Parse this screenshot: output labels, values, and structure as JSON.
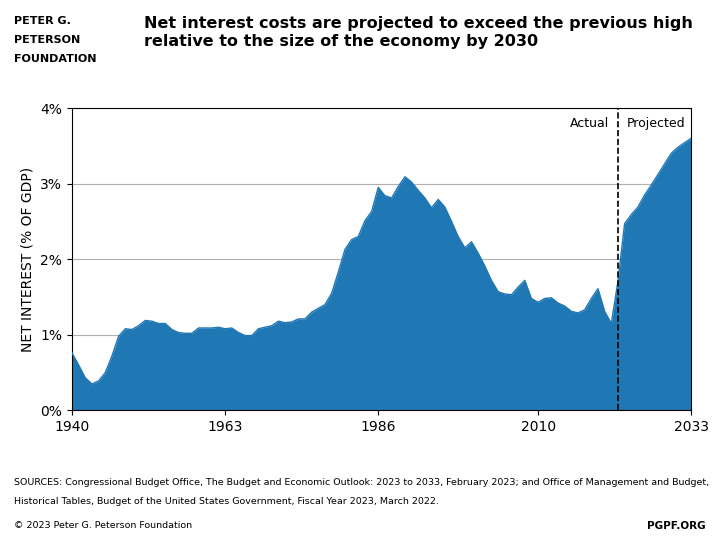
{
  "chart_data": {
    "type": "area",
    "title": "Net interest costs are projected to exceed the previous high\nrelative to the size of the economy by 2030",
    "ylabel": "NET INTEREST (% OF GDP)",
    "x": [
      1940,
      1941,
      1942,
      1943,
      1944,
      1945,
      1946,
      1947,
      1948,
      1949,
      1950,
      1951,
      1952,
      1953,
      1954,
      1955,
      1956,
      1957,
      1958,
      1959,
      1960,
      1961,
      1962,
      1963,
      1964,
      1965,
      1966,
      1967,
      1968,
      1969,
      1970,
      1971,
      1972,
      1973,
      1974,
      1975,
      1976,
      1977,
      1978,
      1979,
      1980,
      1981,
      1982,
      1983,
      1984,
      1985,
      1986,
      1987,
      1988,
      1989,
      1990,
      1991,
      1992,
      1993,
      1994,
      1995,
      1996,
      1997,
      1998,
      1999,
      2000,
      2001,
      2002,
      2003,
      2004,
      2005,
      2006,
      2007,
      2008,
      2009,
      2010,
      2011,
      2012,
      2013,
      2014,
      2015,
      2016,
      2017,
      2018,
      2019,
      2020,
      2021,
      2022,
      2023,
      2024,
      2025,
      2026,
      2027,
      2028,
      2029,
      2030,
      2031,
      2032,
      2033
    ],
    "values": [
      0.0076,
      0.006,
      0.0043,
      0.0035,
      0.0039,
      0.005,
      0.0072,
      0.0098,
      0.0108,
      0.0107,
      0.0112,
      0.0119,
      0.0118,
      0.0115,
      0.0115,
      0.0107,
      0.0103,
      0.0102,
      0.0102,
      0.0109,
      0.0109,
      0.0109,
      0.011,
      0.0108,
      0.0109,
      0.0103,
      0.0099,
      0.0099,
      0.0108,
      0.011,
      0.0112,
      0.0118,
      0.0116,
      0.0117,
      0.0121,
      0.0121,
      0.013,
      0.0135,
      0.014,
      0.0155,
      0.0183,
      0.0213,
      0.0226,
      0.023,
      0.0251,
      0.0263,
      0.0295,
      0.0284,
      0.0281,
      0.0296,
      0.0309,
      0.0302,
      0.0291,
      0.0281,
      0.0268,
      0.0279,
      0.0269,
      0.025,
      0.023,
      0.0215,
      0.0223,
      0.0208,
      0.0191,
      0.0172,
      0.0157,
      0.0154,
      0.0153,
      0.0163,
      0.0172,
      0.0148,
      0.0143,
      0.0148,
      0.0149,
      0.0142,
      0.0138,
      0.0131,
      0.0129,
      0.0133,
      0.0148,
      0.0161,
      0.0131,
      0.0115,
      0.0171,
      0.0247,
      0.0259,
      0.0269,
      0.0285,
      0.0298,
      0.0312,
      0.0326,
      0.034,
      0.0348,
      0.0354,
      0.036
    ],
    "xlim": [
      1940,
      2033
    ],
    "xticks": [
      1940,
      1963,
      1986,
      2010,
      2033
    ],
    "ylim": [
      0,
      0.04
    ],
    "yticks": [
      {
        "value": 0,
        "label": "0%"
      },
      {
        "value": 0.01,
        "label": "1%"
      },
      {
        "value": 0.02,
        "label": "2%"
      },
      {
        "value": 0.03,
        "label": "3%"
      },
      {
        "value": 0.04,
        "label": "4%"
      }
    ],
    "grid": true,
    "divider": {
      "x": 2022,
      "labels": [
        "Actual",
        "Projected"
      ]
    },
    "header": [
      "PETER G.",
      "PETERSON",
      "FOUNDATION"
    ],
    "footer": [
      "SOURCES: Congressional Budget Office, The Budget and Economic Outlook: 2023 to 2033, February 2023; and Office of Management and Budget,",
      "Historical Tables, Budget of the United States Government, Fiscal Year 2023, March 2022.",
      "© 2023 Peter G. Peterson Foundation",
      "PGPF.ORG"
    ]
  }
}
